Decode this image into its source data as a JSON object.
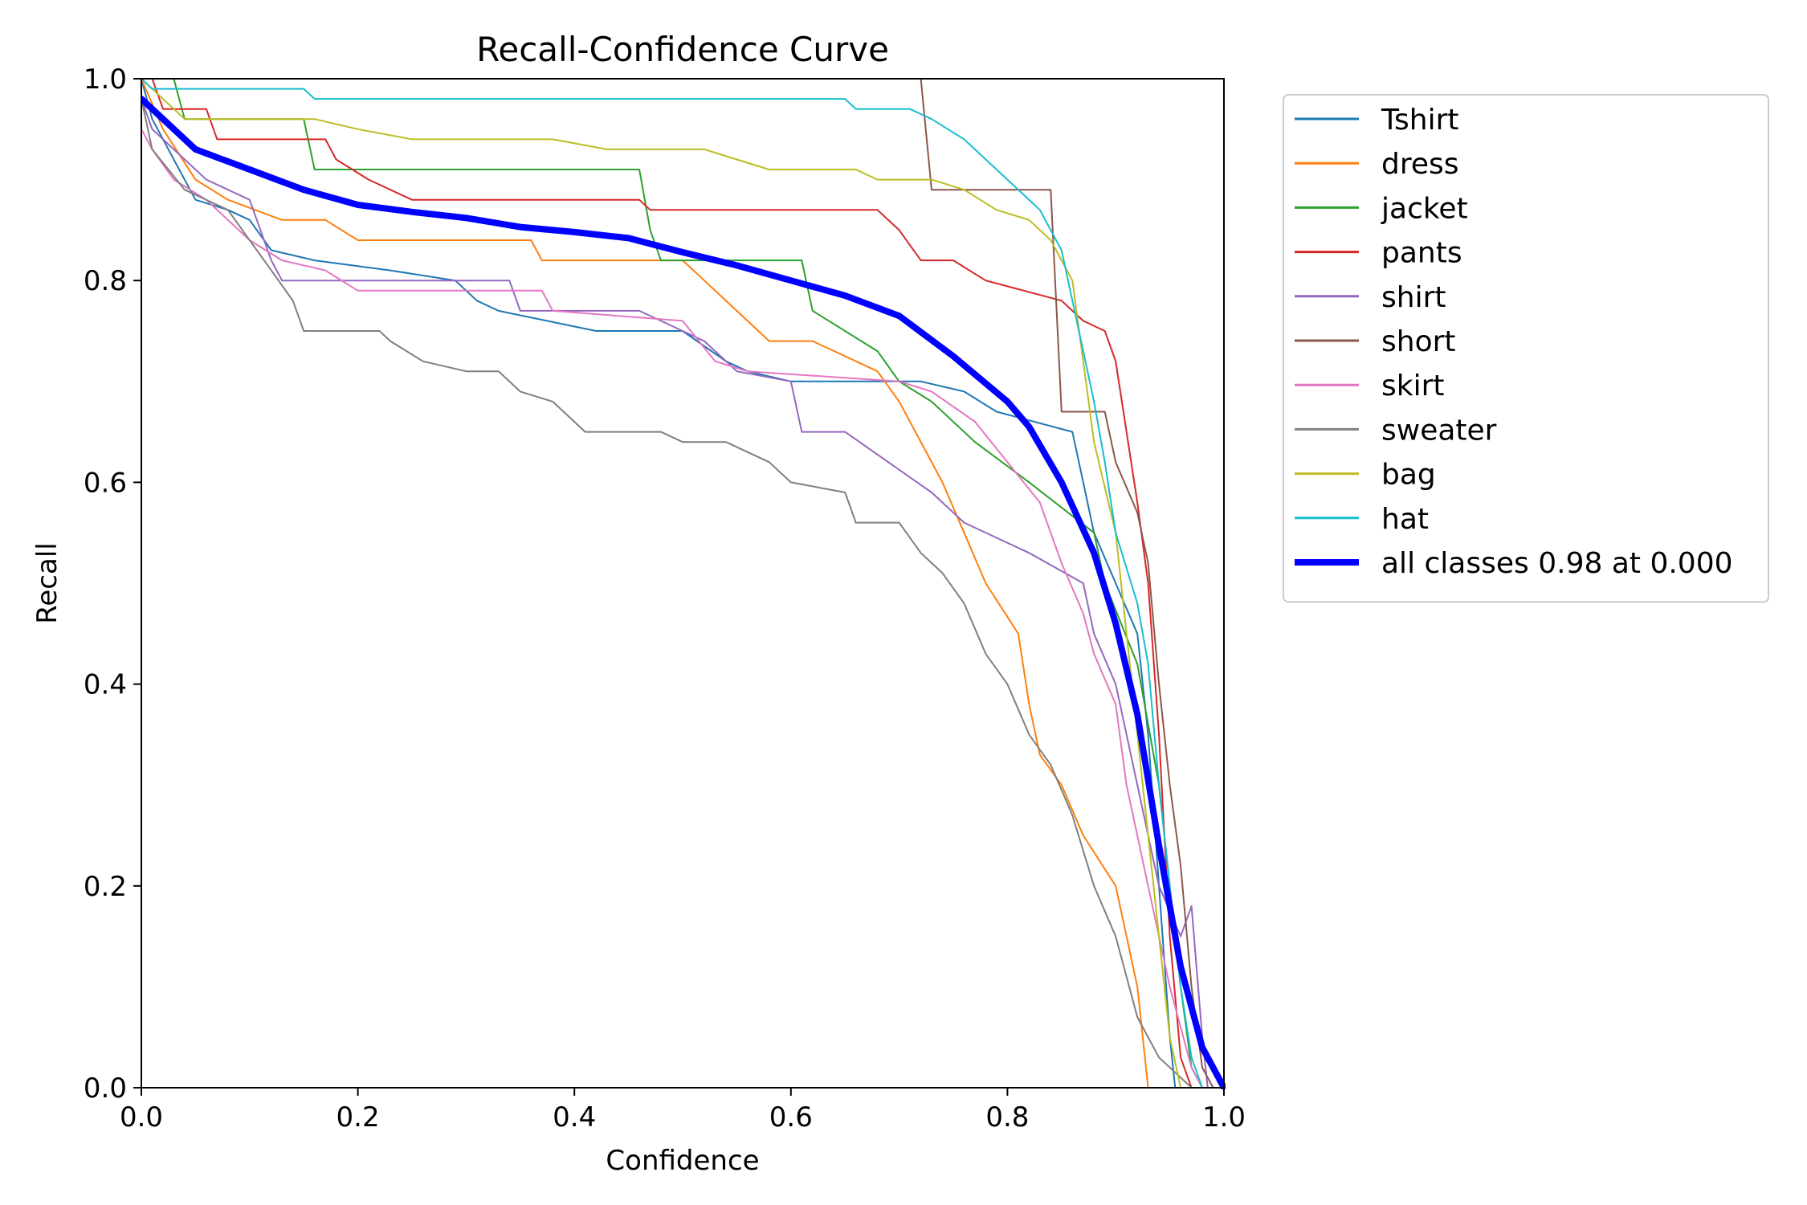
{
  "chart_data": {
    "type": "line",
    "title": "Recall-Confidence Curve",
    "xlabel": "Confidence",
    "ylabel": "Recall",
    "xlim": [
      0,
      1
    ],
    "ylim": [
      0,
      1
    ],
    "xticks": [
      "0.0",
      "0.2",
      "0.4",
      "0.6",
      "0.8",
      "1.0"
    ],
    "yticks": [
      "0.0",
      "0.2",
      "0.4",
      "0.6",
      "0.8",
      "1.0"
    ],
    "grid": false,
    "legend_position": "outside-top-right",
    "series": [
      {
        "name": "Tshirt",
        "color": "#1f77b4",
        "width": 2,
        "points": [
          [
            0,
            1
          ],
          [
            0.01,
            0.96
          ],
          [
            0.03,
            0.92
          ],
          [
            0.05,
            0.88
          ],
          [
            0.08,
            0.87
          ],
          [
            0.1,
            0.86
          ],
          [
            0.12,
            0.83
          ],
          [
            0.16,
            0.82
          ],
          [
            0.23,
            0.81
          ],
          [
            0.29,
            0.8
          ],
          [
            0.31,
            0.78
          ],
          [
            0.33,
            0.77
          ],
          [
            0.42,
            0.75
          ],
          [
            0.5,
            0.75
          ],
          [
            0.54,
            0.72
          ],
          [
            0.56,
            0.71
          ],
          [
            0.6,
            0.7
          ],
          [
            0.72,
            0.7
          ],
          [
            0.76,
            0.69
          ],
          [
            0.79,
            0.67
          ],
          [
            0.86,
            0.65
          ],
          [
            0.87,
            0.6
          ],
          [
            0.88,
            0.55
          ],
          [
            0.9,
            0.5
          ],
          [
            0.92,
            0.45
          ],
          [
            0.93,
            0.35
          ],
          [
            0.94,
            0.2
          ],
          [
            0.95,
            0.05
          ],
          [
            0.955,
            0
          ]
        ]
      },
      {
        "name": "dress",
        "color": "#ff7f0e",
        "width": 2,
        "points": [
          [
            0,
            1
          ],
          [
            0.02,
            0.95
          ],
          [
            0.05,
            0.9
          ],
          [
            0.08,
            0.88
          ],
          [
            0.13,
            0.86
          ],
          [
            0.17,
            0.86
          ],
          [
            0.2,
            0.84
          ],
          [
            0.36,
            0.84
          ],
          [
            0.37,
            0.82
          ],
          [
            0.5,
            0.82
          ],
          [
            0.52,
            0.8
          ],
          [
            0.55,
            0.77
          ],
          [
            0.58,
            0.74
          ],
          [
            0.62,
            0.74
          ],
          [
            0.68,
            0.71
          ],
          [
            0.7,
            0.68
          ],
          [
            0.74,
            0.6
          ],
          [
            0.76,
            0.55
          ],
          [
            0.78,
            0.5
          ],
          [
            0.81,
            0.45
          ],
          [
            0.82,
            0.38
          ],
          [
            0.83,
            0.33
          ],
          [
            0.85,
            0.3
          ],
          [
            0.87,
            0.25
          ],
          [
            0.9,
            0.2
          ],
          [
            0.92,
            0.1
          ],
          [
            0.93,
            0
          ]
        ]
      },
      {
        "name": "jacket",
        "color": "#2ca02c",
        "width": 2,
        "points": [
          [
            0.03,
            1
          ],
          [
            0.04,
            0.96
          ],
          [
            0.15,
            0.96
          ],
          [
            0.16,
            0.91
          ],
          [
            0.46,
            0.91
          ],
          [
            0.47,
            0.85
          ],
          [
            0.48,
            0.82
          ],
          [
            0.61,
            0.82
          ],
          [
            0.62,
            0.77
          ],
          [
            0.68,
            0.73
          ],
          [
            0.7,
            0.7
          ],
          [
            0.73,
            0.68
          ],
          [
            0.77,
            0.64
          ],
          [
            0.82,
            0.6
          ],
          [
            0.88,
            0.55
          ],
          [
            0.89,
            0.5
          ],
          [
            0.92,
            0.42
          ],
          [
            0.94,
            0.3
          ],
          [
            0.95,
            0.2
          ],
          [
            0.96,
            0.1
          ],
          [
            0.97,
            0.02
          ],
          [
            0.98,
            0
          ]
        ]
      },
      {
        "name": "pants",
        "color": "#d62728",
        "width": 2,
        "points": [
          [
            0.01,
            1
          ],
          [
            0.02,
            0.97
          ],
          [
            0.06,
            0.97
          ],
          [
            0.07,
            0.94
          ],
          [
            0.17,
            0.94
          ],
          [
            0.18,
            0.92
          ],
          [
            0.21,
            0.9
          ],
          [
            0.25,
            0.88
          ],
          [
            0.46,
            0.88
          ],
          [
            0.47,
            0.87
          ],
          [
            0.68,
            0.87
          ],
          [
            0.7,
            0.85
          ],
          [
            0.72,
            0.82
          ],
          [
            0.75,
            0.82
          ],
          [
            0.78,
            0.8
          ],
          [
            0.85,
            0.78
          ],
          [
            0.87,
            0.76
          ],
          [
            0.89,
            0.75
          ],
          [
            0.9,
            0.72
          ],
          [
            0.91,
            0.65
          ],
          [
            0.92,
            0.58
          ],
          [
            0.93,
            0.5
          ],
          [
            0.94,
            0.35
          ],
          [
            0.95,
            0.15
          ],
          [
            0.96,
            0.03
          ],
          [
            0.97,
            0
          ]
        ]
      },
      {
        "name": "shirt",
        "color": "#9467bd",
        "width": 2,
        "points": [
          [
            0,
            0.98
          ],
          [
            0.01,
            0.95
          ],
          [
            0.03,
            0.93
          ],
          [
            0.06,
            0.9
          ],
          [
            0.1,
            0.88
          ],
          [
            0.12,
            0.82
          ],
          [
            0.13,
            0.8
          ],
          [
            0.34,
            0.8
          ],
          [
            0.35,
            0.77
          ],
          [
            0.46,
            0.77
          ],
          [
            0.48,
            0.76
          ],
          [
            0.52,
            0.74
          ],
          [
            0.55,
            0.71
          ],
          [
            0.6,
            0.7
          ],
          [
            0.61,
            0.65
          ],
          [
            0.65,
            0.65
          ],
          [
            0.69,
            0.62
          ],
          [
            0.73,
            0.59
          ],
          [
            0.76,
            0.56
          ],
          [
            0.82,
            0.53
          ],
          [
            0.87,
            0.5
          ],
          [
            0.88,
            0.45
          ],
          [
            0.9,
            0.4
          ],
          [
            0.92,
            0.3
          ],
          [
            0.94,
            0.2
          ],
          [
            0.96,
            0.15
          ],
          [
            0.97,
            0.18
          ],
          [
            0.98,
            0.05
          ],
          [
            0.985,
            0
          ]
        ]
      },
      {
        "name": "short",
        "color": "#8c564b",
        "width": 2,
        "points": [
          [
            0.72,
            1
          ],
          [
            0.73,
            0.89
          ],
          [
            0.84,
            0.89
          ],
          [
            0.85,
            0.67
          ],
          [
            0.89,
            0.67
          ],
          [
            0.9,
            0.62
          ],
          [
            0.92,
            0.57
          ],
          [
            0.93,
            0.52
          ],
          [
            0.94,
            0.4
          ],
          [
            0.95,
            0.3
          ],
          [
            0.96,
            0.22
          ],
          [
            0.97,
            0.1
          ],
          [
            0.98,
            0.02
          ],
          [
            0.99,
            0
          ]
        ]
      },
      {
        "name": "skirt",
        "color": "#e377c2",
        "width": 2,
        "points": [
          [
            0,
            0.95
          ],
          [
            0.01,
            0.93
          ],
          [
            0.03,
            0.9
          ],
          [
            0.06,
            0.88
          ],
          [
            0.1,
            0.84
          ],
          [
            0.13,
            0.82
          ],
          [
            0.17,
            0.81
          ],
          [
            0.2,
            0.79
          ],
          [
            0.37,
            0.79
          ],
          [
            0.38,
            0.77
          ],
          [
            0.5,
            0.76
          ],
          [
            0.53,
            0.72
          ],
          [
            0.56,
            0.71
          ],
          [
            0.7,
            0.7
          ],
          [
            0.73,
            0.69
          ],
          [
            0.77,
            0.66
          ],
          [
            0.8,
            0.62
          ],
          [
            0.83,
            0.58
          ],
          [
            0.85,
            0.52
          ],
          [
            0.87,
            0.47
          ],
          [
            0.88,
            0.43
          ],
          [
            0.9,
            0.38
          ],
          [
            0.91,
            0.3
          ],
          [
            0.93,
            0.2
          ],
          [
            0.95,
            0.1
          ],
          [
            0.97,
            0.02
          ],
          [
            0.98,
            0
          ]
        ]
      },
      {
        "name": "sweater",
        "color": "#7f7f7f",
        "width": 2,
        "points": [
          [
            0,
            0.98
          ],
          [
            0.01,
            0.93
          ],
          [
            0.04,
            0.89
          ],
          [
            0.08,
            0.87
          ],
          [
            0.12,
            0.81
          ],
          [
            0.14,
            0.78
          ],
          [
            0.15,
            0.75
          ],
          [
            0.22,
            0.75
          ],
          [
            0.23,
            0.74
          ],
          [
            0.26,
            0.72
          ],
          [
            0.3,
            0.71
          ],
          [
            0.33,
            0.71
          ],
          [
            0.35,
            0.69
          ],
          [
            0.38,
            0.68
          ],
          [
            0.41,
            0.65
          ],
          [
            0.48,
            0.65
          ],
          [
            0.5,
            0.64
          ],
          [
            0.54,
            0.64
          ],
          [
            0.58,
            0.62
          ],
          [
            0.6,
            0.6
          ],
          [
            0.65,
            0.59
          ],
          [
            0.66,
            0.56
          ],
          [
            0.7,
            0.56
          ],
          [
            0.72,
            0.53
          ],
          [
            0.74,
            0.51
          ],
          [
            0.76,
            0.48
          ],
          [
            0.78,
            0.43
          ],
          [
            0.8,
            0.4
          ],
          [
            0.82,
            0.35
          ],
          [
            0.84,
            0.32
          ],
          [
            0.86,
            0.27
          ],
          [
            0.88,
            0.2
          ],
          [
            0.9,
            0.15
          ],
          [
            0.92,
            0.07
          ],
          [
            0.94,
            0.03
          ],
          [
            0.96,
            0.01
          ],
          [
            0.97,
            0
          ]
        ]
      },
      {
        "name": "bag",
        "color": "#bcbd22",
        "width": 2,
        "points": [
          [
            0,
            1
          ],
          [
            0.04,
            0.96
          ],
          [
            0.16,
            0.96
          ],
          [
            0.2,
            0.95
          ],
          [
            0.25,
            0.94
          ],
          [
            0.38,
            0.94
          ],
          [
            0.43,
            0.93
          ],
          [
            0.52,
            0.93
          ],
          [
            0.55,
            0.92
          ],
          [
            0.58,
            0.91
          ],
          [
            0.66,
            0.91
          ],
          [
            0.68,
            0.9
          ],
          [
            0.73,
            0.9
          ],
          [
            0.76,
            0.89
          ],
          [
            0.79,
            0.87
          ],
          [
            0.82,
            0.86
          ],
          [
            0.84,
            0.84
          ],
          [
            0.86,
            0.8
          ],
          [
            0.87,
            0.72
          ],
          [
            0.88,
            0.64
          ],
          [
            0.9,
            0.55
          ],
          [
            0.91,
            0.45
          ],
          [
            0.92,
            0.35
          ],
          [
            0.93,
            0.25
          ],
          [
            0.94,
            0.15
          ],
          [
            0.95,
            0.05
          ],
          [
            0.96,
            0
          ]
        ]
      },
      {
        "name": "hat",
        "color": "#17becf",
        "width": 2,
        "points": [
          [
            0,
            1
          ],
          [
            0.01,
            0.99
          ],
          [
            0.15,
            0.99
          ],
          [
            0.16,
            0.98
          ],
          [
            0.65,
            0.98
          ],
          [
            0.66,
            0.97
          ],
          [
            0.71,
            0.97
          ],
          [
            0.73,
            0.96
          ],
          [
            0.76,
            0.94
          ],
          [
            0.78,
            0.92
          ],
          [
            0.8,
            0.9
          ],
          [
            0.83,
            0.87
          ],
          [
            0.85,
            0.83
          ],
          [
            0.86,
            0.78
          ],
          [
            0.87,
            0.73
          ],
          [
            0.88,
            0.68
          ],
          [
            0.89,
            0.62
          ],
          [
            0.9,
            0.55
          ],
          [
            0.92,
            0.48
          ],
          [
            0.93,
            0.42
          ],
          [
            0.94,
            0.3
          ],
          [
            0.95,
            0.2
          ],
          [
            0.96,
            0.1
          ],
          [
            0.97,
            0.03
          ],
          [
            0.98,
            0
          ]
        ]
      },
      {
        "name": "all classes 0.98 at 0.000",
        "color": "#0000ff",
        "width": 8,
        "points": [
          [
            0,
            0.98
          ],
          [
            0.02,
            0.96
          ],
          [
            0.05,
            0.93
          ],
          [
            0.1,
            0.91
          ],
          [
            0.15,
            0.89
          ],
          [
            0.2,
            0.875
          ],
          [
            0.25,
            0.868
          ],
          [
            0.3,
            0.862
          ],
          [
            0.35,
            0.853
          ],
          [
            0.4,
            0.848
          ],
          [
            0.45,
            0.842
          ],
          [
            0.5,
            0.828
          ],
          [
            0.55,
            0.815
          ],
          [
            0.6,
            0.8
          ],
          [
            0.65,
            0.785
          ],
          [
            0.7,
            0.765
          ],
          [
            0.75,
            0.725
          ],
          [
            0.8,
            0.68
          ],
          [
            0.82,
            0.655
          ],
          [
            0.85,
            0.6
          ],
          [
            0.88,
            0.53
          ],
          [
            0.9,
            0.46
          ],
          [
            0.92,
            0.37
          ],
          [
            0.94,
            0.24
          ],
          [
            0.96,
            0.12
          ],
          [
            0.98,
            0.04
          ],
          [
            1,
            0
          ]
        ]
      }
    ]
  }
}
